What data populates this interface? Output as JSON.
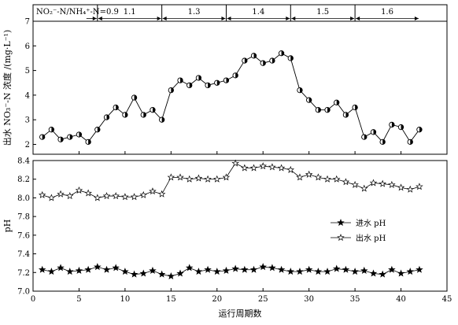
{
  "chart_data": [
    {
      "type": "line",
      "ylabel": "出水 NO₃⁻-N 浓度 /(mg·L⁻¹)",
      "ylim": [
        1.6,
        7
      ],
      "yticks": [
        2,
        3,
        4,
        5,
        6,
        7
      ],
      "xlim": [
        0,
        45
      ],
      "bands": [
        {
          "label": "NO₂⁻-N/NH₄⁺-N=0.9",
          "x_start": 0,
          "x_end": 7
        },
        {
          "label": "1.1",
          "x_start": 7,
          "x_end": 14
        },
        {
          "label": "1.3",
          "x_start": 14,
          "x_end": 21
        },
        {
          "label": "1.4",
          "x_start": 21,
          "x_end": 28
        },
        {
          "label": "1.5",
          "x_start": 28,
          "x_end": 35
        },
        {
          "label": "1.6",
          "x_start": 35,
          "x_end": 42
        }
      ],
      "series": [
        {
          "marker": "half-filled-circle",
          "x": [
            1,
            2,
            3,
            4,
            5,
            6,
            7,
            8,
            9,
            10,
            11,
            12,
            13,
            14,
            15,
            16,
            17,
            18,
            19,
            20,
            21,
            22,
            23,
            24,
            25,
            26,
            27,
            28,
            29,
            30,
            31,
            32,
            33,
            34,
            35,
            36,
            37,
            38,
            39,
            40,
            41,
            42
          ],
          "y": [
            2.3,
            2.6,
            2.2,
            2.3,
            2.4,
            2.1,
            2.6,
            3.1,
            3.5,
            3.2,
            3.9,
            3.2,
            3.4,
            3.0,
            4.2,
            4.6,
            4.4,
            4.7,
            4.4,
            4.5,
            4.6,
            4.8,
            5.4,
            5.6,
            5.3,
            5.4,
            5.7,
            5.5,
            4.2,
            3.8,
            3.4,
            3.4,
            3.7,
            3.2,
            3.5,
            2.3,
            2.5,
            2.1,
            2.8,
            2.7,
            2.1,
            2.6
          ]
        }
      ]
    },
    {
      "type": "line",
      "xlabel": "运行周期数",
      "ylabel": "pH",
      "ylim": [
        7.0,
        8.4
      ],
      "yticks": [
        7.0,
        7.2,
        7.4,
        7.6,
        7.8,
        8.0,
        8.2,
        8.4
      ],
      "xlim": [
        0,
        45
      ],
      "xticks": [
        0,
        5,
        10,
        15,
        20,
        25,
        30,
        35,
        40,
        45
      ],
      "legend_position": "center-right",
      "series": [
        {
          "name": "进水 pH",
          "marker": "filled-star",
          "x": [
            1,
            2,
            3,
            4,
            5,
            6,
            7,
            8,
            9,
            10,
            11,
            12,
            13,
            14,
            15,
            16,
            17,
            18,
            19,
            20,
            21,
            22,
            23,
            24,
            25,
            26,
            27,
            28,
            29,
            30,
            31,
            32,
            33,
            34,
            35,
            36,
            37,
            38,
            39,
            40,
            41,
            42
          ],
          "y": [
            7.23,
            7.21,
            7.25,
            7.21,
            7.22,
            7.23,
            7.26,
            7.23,
            7.25,
            7.21,
            7.18,
            7.19,
            7.22,
            7.18,
            7.16,
            7.19,
            7.25,
            7.21,
            7.23,
            7.21,
            7.22,
            7.24,
            7.23,
            7.23,
            7.26,
            7.25,
            7.23,
            7.21,
            7.21,
            7.23,
            7.21,
            7.21,
            7.24,
            7.23,
            7.21,
            7.22,
            7.19,
            7.18,
            7.23,
            7.19,
            7.21,
            7.23
          ]
        },
        {
          "name": "出水 pH",
          "marker": "hollow-star",
          "x": [
            1,
            2,
            3,
            4,
            5,
            6,
            7,
            8,
            9,
            10,
            11,
            12,
            13,
            14,
            15,
            16,
            17,
            18,
            19,
            20,
            21,
            22,
            23,
            24,
            25,
            26,
            27,
            28,
            29,
            30,
            31,
            32,
            33,
            34,
            35,
            36,
            37,
            38,
            39,
            40,
            41,
            42
          ],
          "y": [
            8.03,
            8.0,
            8.04,
            8.02,
            8.08,
            8.05,
            8.0,
            8.02,
            8.02,
            8.01,
            8.01,
            8.03,
            8.07,
            8.04,
            8.22,
            8.22,
            8.2,
            8.21,
            8.2,
            8.2,
            8.22,
            8.37,
            8.32,
            8.32,
            8.34,
            8.33,
            8.32,
            8.3,
            8.22,
            8.25,
            8.22,
            8.2,
            8.2,
            8.17,
            8.14,
            8.1,
            8.16,
            8.15,
            8.14,
            8.11,
            8.09,
            8.12
          ]
        }
      ]
    }
  ]
}
